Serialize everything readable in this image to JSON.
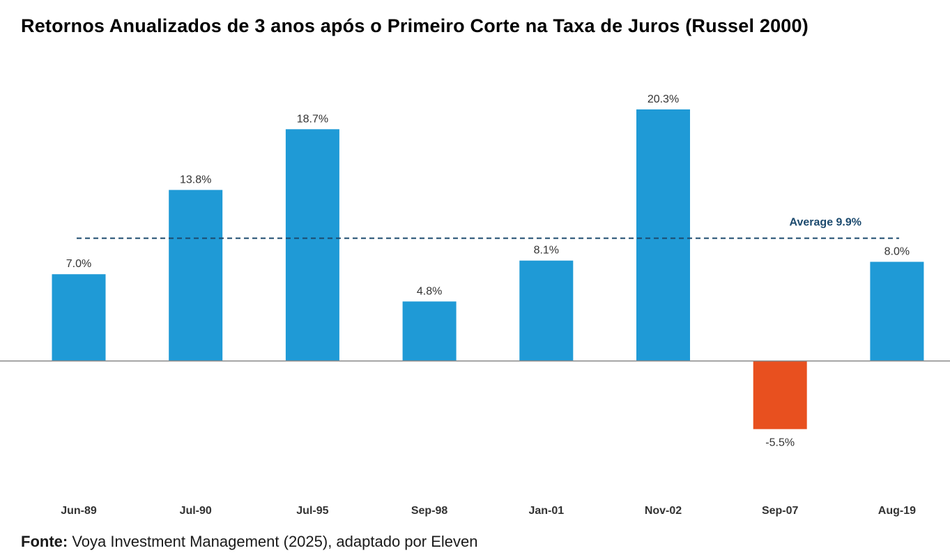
{
  "title": "Retornos Anualizados de 3 anos após o Primeiro Corte na Taxa de Juros (Russel 2000)",
  "source": {
    "label": "Fonte:",
    "text": "Voya Investment Management (2025), adaptado por Eleven"
  },
  "colors": {
    "positive": "#1f9ad6",
    "negative": "#e8501f",
    "average": "#1c4a6e",
    "axis": "#888888"
  },
  "chart_data": {
    "type": "bar",
    "title": "Retornos Anualizados de 3 anos após o Primeiro Corte na Taxa de Juros (Russel 2000)",
    "categories": [
      "Jun-89",
      "Jul-90",
      "Jul-95",
      "Sep-98",
      "Jan-01",
      "Nov-02",
      "Sep-07",
      "Aug-19"
    ],
    "values": [
      7.0,
      13.8,
      18.7,
      4.8,
      8.1,
      20.3,
      -5.5,
      8.0
    ],
    "value_labels": [
      "7.0%",
      "13.8%",
      "18.7%",
      "4.8%",
      "8.1%",
      "20.3%",
      "-5.5%",
      "8.0%"
    ],
    "average": {
      "value": 9.9,
      "label": "Average 9.9%"
    },
    "ylim": [
      -9.7,
      23.5
    ],
    "xlabel": "",
    "ylabel": "",
    "grid": false,
    "legend": "none"
  }
}
